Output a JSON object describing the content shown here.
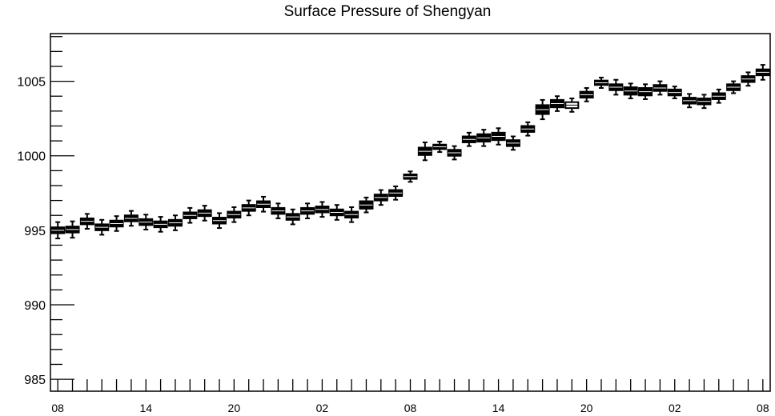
{
  "chart_data": {
    "type": "box",
    "title": "Surface Pressure of Shengyan",
    "xlabel": "",
    "ylabel": "",
    "x_tick_labels": [
      "08",
      "14",
      "20",
      "02",
      "08",
      "14",
      "20",
      "02",
      "08"
    ],
    "x_range": [
      0,
      49
    ],
    "ylim": [
      984.2,
      1008.2
    ],
    "y_ticks": [
      985,
      990,
      995,
      1000,
      1005
    ],
    "grid": false,
    "legend": "none",
    "box_style": [
      "filled",
      "filled",
      "filled",
      "filled",
      "filled",
      "filled",
      "filled",
      "filled",
      "filled",
      "filled",
      "filled",
      "filled",
      "filled",
      "filled",
      "filled",
      "filled",
      "filled",
      "filled",
      "filled",
      "filled",
      "filled",
      "filled",
      "filled",
      "filled",
      "filled",
      "filled",
      "filled",
      "filled",
      "filled",
      "filled",
      "filled",
      "filled",
      "filled",
      "filled",
      "filled",
      "hollow",
      "filled",
      "filled",
      "filled",
      "filled",
      "filled",
      "filled",
      "filled",
      "filled",
      "filled",
      "filled",
      "filled",
      "filled",
      "filled"
    ],
    "medians": [
      995.0,
      995.05,
      995.6,
      995.2,
      995.45,
      995.8,
      995.55,
      995.4,
      995.5,
      996.0,
      996.15,
      995.65,
      996.05,
      996.5,
      996.75,
      996.3,
      995.9,
      996.3,
      996.4,
      996.2,
      996.05,
      996.7,
      997.2,
      997.5,
      998.6,
      1000.3,
      1000.6,
      1000.2,
      1001.1,
      1001.2,
      1001.3,
      1000.85,
      1001.8,
      1003.1,
      1003.5,
      1003.4,
      1004.1,
      1004.9,
      1004.6,
      1004.35,
      1004.3,
      1004.55,
      1004.25,
      1003.7,
      1003.65,
      1004.0,
      1004.6,
      1005.15,
      1005.6
    ],
    "box_halfheight": [
      0.2,
      0.2,
      0.2,
      0.2,
      0.2,
      0.2,
      0.2,
      0.2,
      0.2,
      0.2,
      0.2,
      0.2,
      0.2,
      0.2,
      0.2,
      0.2,
      0.2,
      0.2,
      0.2,
      0.2,
      0.2,
      0.25,
      0.2,
      0.2,
      0.15,
      0.25,
      0.15,
      0.2,
      0.2,
      0.25,
      0.25,
      0.2,
      0.2,
      0.3,
      0.25,
      0.2,
      0.2,
      0.15,
      0.2,
      0.25,
      0.25,
      0.2,
      0.2,
      0.2,
      0.2,
      0.2,
      0.2,
      0.2,
      0.2
    ],
    "whisker_halfrange": [
      0.55,
      0.55,
      0.5,
      0.5,
      0.5,
      0.5,
      0.5,
      0.5,
      0.5,
      0.5,
      0.5,
      0.5,
      0.5,
      0.5,
      0.5,
      0.5,
      0.5,
      0.5,
      0.5,
      0.5,
      0.5,
      0.5,
      0.5,
      0.45,
      0.35,
      0.6,
      0.35,
      0.45,
      0.45,
      0.55,
      0.55,
      0.45,
      0.45,
      0.65,
      0.5,
      0.45,
      0.45,
      0.35,
      0.5,
      0.5,
      0.5,
      0.45,
      0.4,
      0.45,
      0.45,
      0.45,
      0.4,
      0.45,
      0.5
    ]
  }
}
